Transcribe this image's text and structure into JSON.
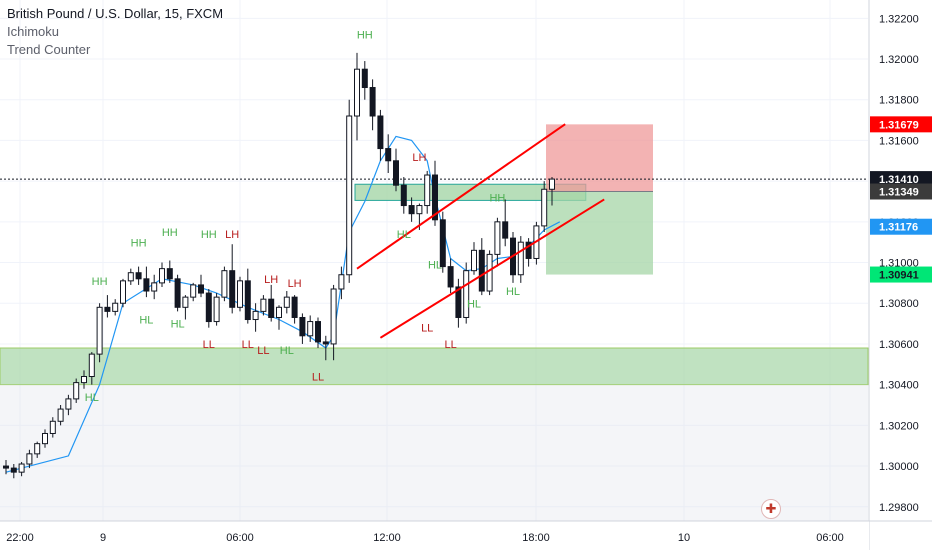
{
  "header": {
    "title": "British Pound / U.S. Dollar, 15, FXCM",
    "indicator_1": "Ichimoku",
    "indicator_2": "Trend Counter"
  },
  "colors": {
    "bull": "#ffffff",
    "bear": "#131722",
    "ichimoku_line": "#2196f3",
    "channel": "#ff0000",
    "support_zone": "#a5d6a7",
    "stop_zone": "#ef9a9a",
    "target_zone": "#a5d6a7",
    "grid": "#f0f3fa",
    "label_green": "#4caf50",
    "label_red": "#b71c1c",
    "price_red": "#ff0000",
    "price_dark": "#131722",
    "price_gray": "#3b3b3b",
    "price_blue": "#2196f3",
    "price_green": "#00e676"
  },
  "chart_data": {
    "type": "candlestick",
    "symbol": "British Pound / U.S. Dollar",
    "interval": "15",
    "source": "FXCM",
    "ylim": [
      1.2973,
      1.3229
    ],
    "y_ticks": [
      1.298,
      1.3,
      1.302,
      1.304,
      1.306,
      1.308,
      1.31,
      1.312,
      1.314,
      1.316,
      1.318,
      1.32,
      1.322
    ],
    "y_tick_labels": [
      "1.29800",
      "1.30000",
      "1.30200",
      "1.30400",
      "1.30600",
      "1.30800",
      "1.31000",
      "1.31200",
      "1.31400",
      "1.31600",
      "1.31800",
      "1.32000",
      "1.32200"
    ],
    "x_tick_labels": [
      "22:00",
      "9",
      "06:00",
      "12:00",
      "18:00",
      "10",
      "06:00"
    ],
    "price_labels": [
      {
        "text": "1.31679",
        "value": 1.31679,
        "color": "price_red"
      },
      {
        "text": "1.31410",
        "value": 1.3141,
        "color": "price_dark"
      },
      {
        "text": "1.31349",
        "value": 1.31349,
        "color": "price_gray"
      },
      {
        "text": "1.31176",
        "value": 1.31176,
        "color": "price_blue"
      },
      {
        "text": "1.30941",
        "value": 1.30941,
        "color": "price_green"
      }
    ],
    "current_price": 1.3141,
    "support_zone": [
      1.304,
      1.3058
    ],
    "resistance_zone": [
      1.3132,
      1.3137
    ],
    "position": {
      "entry": 1.31349,
      "stop": 1.31679,
      "target": 1.30941
    },
    "channel_upper": [
      [
        1.3097,
        45
      ],
      [
        1.3168,
        64
      ]
    ],
    "channel_lower": [
      [
        1.3063,
        48
      ],
      [
        1.3131,
        69
      ]
    ],
    "candles": [
      [
        1.3,
        1.3003,
        1.2996,
        1.2999
      ],
      [
        1.2999,
        1.3001,
        1.2994,
        1.2997
      ],
      [
        1.2997,
        1.3002,
        1.2995,
        1.3001
      ],
      [
        1.3001,
        1.3008,
        1.2999,
        1.3006
      ],
      [
        1.3006,
        1.3012,
        1.3004,
        1.3011
      ],
      [
        1.3011,
        1.3018,
        1.3009,
        1.3016
      ],
      [
        1.3016,
        1.3024,
        1.3014,
        1.3022
      ],
      [
        1.3022,
        1.303,
        1.302,
        1.3028
      ],
      [
        1.3028,
        1.3035,
        1.3025,
        1.3033
      ],
      [
        1.3033,
        1.3043,
        1.3031,
        1.3041
      ],
      [
        1.3041,
        1.3047,
        1.3038,
        1.3044
      ],
      [
        1.3044,
        1.3056,
        1.304,
        1.3055
      ],
      [
        1.3055,
        1.308,
        1.3051,
        1.3078
      ],
      [
        1.3078,
        1.3084,
        1.3073,
        1.3076
      ],
      [
        1.3076,
        1.3082,
        1.3074,
        1.308
      ],
      [
        1.308,
        1.3092,
        1.3078,
        1.3091
      ],
      [
        1.3091,
        1.3097,
        1.3089,
        1.3095
      ],
      [
        1.3095,
        1.3098,
        1.3089,
        1.3092
      ],
      [
        1.3092,
        1.3098,
        1.3083,
        1.3086
      ],
      [
        1.3086,
        1.3094,
        1.3082,
        1.309
      ],
      [
        1.309,
        1.31,
        1.3088,
        1.3097
      ],
      [
        1.3097,
        1.3101,
        1.309,
        1.3092
      ],
      [
        1.3092,
        1.3094,
        1.3076,
        1.3078
      ],
      [
        1.3078,
        1.3084,
        1.3072,
        1.3083
      ],
      [
        1.3083,
        1.309,
        1.3081,
        1.3089
      ],
      [
        1.3089,
        1.3094,
        1.3083,
        1.3085
      ],
      [
        1.3085,
        1.3087,
        1.3068,
        1.3071
      ],
      [
        1.3071,
        1.3085,
        1.3069,
        1.3083
      ],
      [
        1.3083,
        1.3098,
        1.3081,
        1.3096
      ],
      [
        1.3096,
        1.3109,
        1.3075,
        1.3078
      ],
      [
        1.3078,
        1.3093,
        1.3076,
        1.3091
      ],
      [
        1.3091,
        1.3097,
        1.307,
        1.3072
      ],
      [
        1.3072,
        1.308,
        1.3066,
        1.3076
      ],
      [
        1.3076,
        1.3084,
        1.3074,
        1.3082
      ],
      [
        1.3082,
        1.3089,
        1.3071,
        1.3073
      ],
      [
        1.3073,
        1.3079,
        1.3067,
        1.3078
      ],
      [
        1.3078,
        1.3086,
        1.3075,
        1.3083
      ],
      [
        1.3083,
        1.3084,
        1.307,
        1.3073
      ],
      [
        1.3073,
        1.3075,
        1.306,
        1.3064
      ],
      [
        1.3064,
        1.3074,
        1.3061,
        1.3071
      ],
      [
        1.3071,
        1.3073,
        1.3058,
        1.3061
      ],
      [
        1.3061,
        1.3064,
        1.3052,
        1.306
      ],
      [
        1.306,
        1.3089,
        1.3052,
        1.3087
      ],
      [
        1.3087,
        1.3098,
        1.3082,
        1.3094
      ],
      [
        1.3094,
        1.318,
        1.309,
        1.3172
      ],
      [
        1.3172,
        1.3203,
        1.316,
        1.3195
      ],
      [
        1.3195,
        1.3199,
        1.318,
        1.3186
      ],
      [
        1.3186,
        1.319,
        1.3165,
        1.3172
      ],
      [
        1.3172,
        1.3175,
        1.315,
        1.3156
      ],
      [
        1.3156,
        1.3163,
        1.3144,
        1.315
      ],
      [
        1.315,
        1.3156,
        1.3135,
        1.3138
      ],
      [
        1.3138,
        1.3142,
        1.3124,
        1.3128
      ],
      [
        1.3128,
        1.3132,
        1.312,
        1.3124
      ],
      [
        1.3124,
        1.3129,
        1.3116,
        1.3128
      ],
      [
        1.3128,
        1.3145,
        1.3124,
        1.3143
      ],
      [
        1.3143,
        1.315,
        1.3118,
        1.3121
      ],
      [
        1.3121,
        1.3125,
        1.3095,
        1.3098
      ],
      [
        1.3098,
        1.3102,
        1.3085,
        1.3088
      ],
      [
        1.3088,
        1.3092,
        1.3068,
        1.3073
      ],
      [
        1.3073,
        1.31,
        1.307,
        1.3096
      ],
      [
        1.3096,
        1.311,
        1.3094,
        1.3106
      ],
      [
        1.3106,
        1.3112,
        1.3084,
        1.3086
      ],
      [
        1.3086,
        1.3106,
        1.3084,
        1.3104
      ],
      [
        1.3104,
        1.3122,
        1.3098,
        1.312
      ],
      [
        1.312,
        1.3131,
        1.3108,
        1.3112
      ],
      [
        1.3112,
        1.3115,
        1.309,
        1.3094
      ],
      [
        1.3094,
        1.3113,
        1.309,
        1.311
      ],
      [
        1.311,
        1.3112,
        1.3098,
        1.3102
      ],
      [
        1.3102,
        1.312,
        1.3099,
        1.3118
      ],
      [
        1.3118,
        1.314,
        1.3115,
        1.3136
      ],
      [
        1.3136,
        1.3142,
        1.3128,
        1.3141
      ]
    ],
    "ichimoku_line": [
      [
        0,
        1.2997
      ],
      [
        8,
        1.3005
      ],
      [
        12,
        1.304
      ],
      [
        15,
        1.308
      ],
      [
        20,
        1.3092
      ],
      [
        24,
        1.3089
      ],
      [
        27,
        1.3085
      ],
      [
        31,
        1.3078
      ],
      [
        35,
        1.3072
      ],
      [
        38,
        1.3066
      ],
      [
        41,
        1.3058
      ],
      [
        42,
        1.3064
      ],
      [
        44,
        1.3115
      ],
      [
        46,
        1.313
      ],
      [
        48,
        1.315
      ],
      [
        50,
        1.3162
      ],
      [
        52,
        1.316
      ],
      [
        54,
        1.315
      ],
      [
        55,
        1.3132
      ],
      [
        57,
        1.3102
      ],
      [
        59,
        1.3096
      ],
      [
        61,
        1.3097
      ],
      [
        63,
        1.3102
      ],
      [
        65,
        1.3103
      ],
      [
        67,
        1.3108
      ],
      [
        69,
        1.3116
      ],
      [
        71,
        1.312
      ]
    ],
    "annotations": [
      {
        "text": "HH",
        "i": 12,
        "price": 1.3089,
        "kind": "green"
      },
      {
        "text": "HL",
        "i": 11,
        "price": 1.3032,
        "kind": "green"
      },
      {
        "text": "HH",
        "i": 17,
        "price": 1.3108,
        "kind": "green"
      },
      {
        "text": "HL",
        "i": 18,
        "price": 1.307,
        "kind": "green"
      },
      {
        "text": "HH",
        "i": 21,
        "price": 1.3113,
        "kind": "green"
      },
      {
        "text": "HL",
        "i": 22,
        "price": 1.3068,
        "kind": "green"
      },
      {
        "text": "HH",
        "i": 26,
        "price": 1.3112,
        "kind": "green"
      },
      {
        "text": "LH",
        "i": 29,
        "price": 1.3112,
        "kind": "red"
      },
      {
        "text": "LL",
        "i": 26,
        "price": 1.3058,
        "kind": "red"
      },
      {
        "text": "LL",
        "i": 31,
        "price": 1.3058,
        "kind": "red"
      },
      {
        "text": "LL",
        "i": 33,
        "price": 1.3055,
        "kind": "red"
      },
      {
        "text": "LH",
        "i": 34,
        "price": 1.309,
        "kind": "red"
      },
      {
        "text": "LH",
        "i": 37,
        "price": 1.3088,
        "kind": "red"
      },
      {
        "text": "HL",
        "i": 36,
        "price": 1.3055,
        "kind": "green"
      },
      {
        "text": "LL",
        "i": 40,
        "price": 1.3042,
        "kind": "red"
      },
      {
        "text": "HH",
        "i": 46,
        "price": 1.321,
        "kind": "green"
      },
      {
        "text": "LH",
        "i": 53,
        "price": 1.315,
        "kind": "red"
      },
      {
        "text": "HL",
        "i": 51,
        "price": 1.3112,
        "kind": "green"
      },
      {
        "text": "LL",
        "i": 54,
        "price": 1.3066,
        "kind": "red"
      },
      {
        "text": "HL",
        "i": 55,
        "price": 1.3097,
        "kind": "green"
      },
      {
        "text": "LL",
        "i": 57,
        "price": 1.3058,
        "kind": "red"
      },
      {
        "text": "HH",
        "i": 63,
        "price": 1.313,
        "kind": "green"
      },
      {
        "text": "HL",
        "i": 60,
        "price": 1.3078,
        "kind": "green"
      },
      {
        "text": "HL",
        "i": 65,
        "price": 1.3084,
        "kind": "green"
      }
    ]
  }
}
